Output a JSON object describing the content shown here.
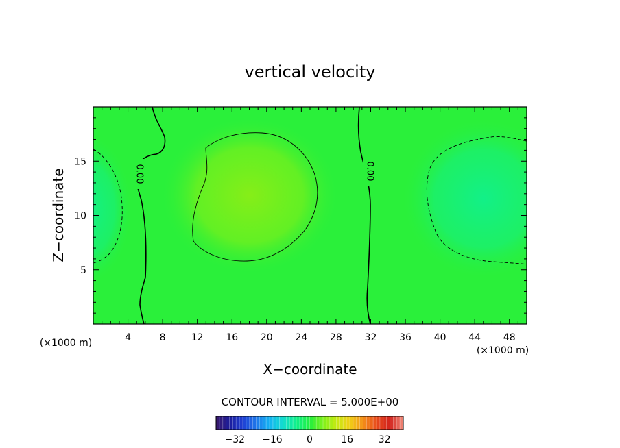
{
  "chart_data": {
    "type": "heatmap",
    "title": "vertical velocity",
    "xlabel": "X−coordinate",
    "ylabel": "Z−coordinate",
    "x_unit": "(×1000 m)",
    "z_unit": "(×1000 m)",
    "xlim": [
      0,
      50
    ],
    "ylim": [
      0,
      20
    ],
    "x_ticks": [
      4,
      8,
      12,
      16,
      20,
      24,
      28,
      32,
      36,
      40,
      44,
      48
    ],
    "y_ticks": [
      5,
      10,
      15
    ],
    "contour_interval_text": "CONTOUR INTERVAL = 5.000E+00",
    "contour_interval": 5,
    "zero_contour_label": "0.00",
    "colorbar": {
      "range": [
        -40,
        40
      ],
      "ticks": [
        -32,
        -16,
        0,
        16,
        32
      ],
      "colors": [
        "#3b1a6b",
        "#1c1c9a",
        "#1f3fd4",
        "#1e78ea",
        "#12b3f2",
        "#14ddd0",
        "#0ff08a",
        "#22f040",
        "#7df11a",
        "#c6ea12",
        "#f1cf16",
        "#f4901a",
        "#e84a1c",
        "#d2231d",
        "#f08a7a"
      ]
    },
    "field_features": [
      {
        "name": "updraft",
        "x": 18,
        "z": 11.5,
        "value": 6
      },
      {
        "name": "downdraft-right",
        "x": 45,
        "z": 11.5,
        "value": -5
      },
      {
        "name": "downdraft-left",
        "x": 0,
        "z": 10,
        "value": -5
      }
    ],
    "colors": {
      "background_field": "#2af03a",
      "updraft_core": "#86ee18",
      "downdraft_core": "#12f088"
    }
  }
}
